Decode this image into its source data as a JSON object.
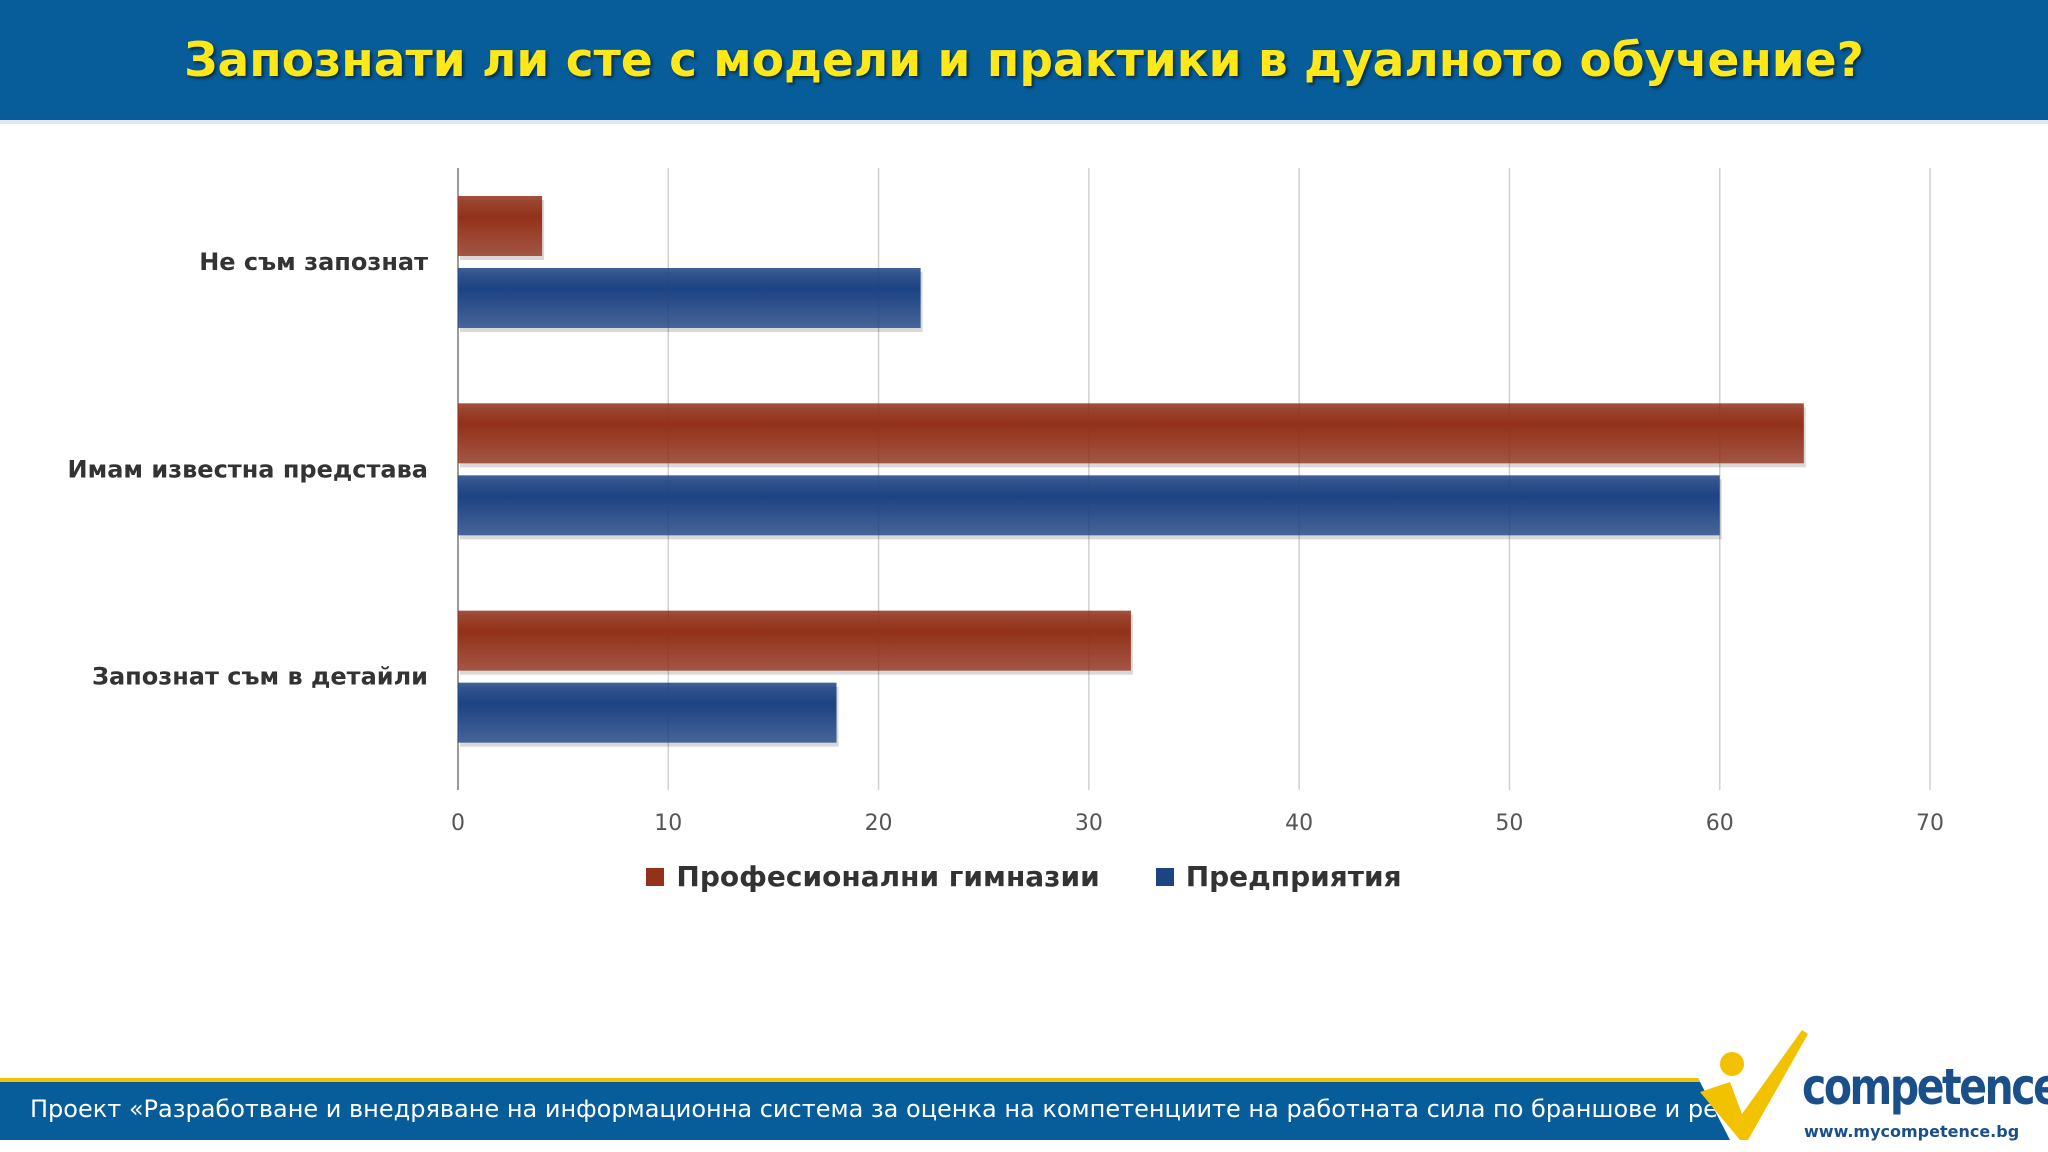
{
  "header": {
    "title": "Запознати ли сте с модели и практики в дуалното обучение?"
  },
  "chart_data": {
    "type": "bar",
    "orientation": "horizontal",
    "title": "Запознати ли сте с модели и практики в дуалното обучение?",
    "categories": [
      "Не съм запознат",
      "Имам известна представа",
      "Запознат съм в детайли"
    ],
    "series": [
      {
        "name": "Професионални гимназии",
        "color": "#93311a",
        "values": [
          4,
          64,
          32
        ]
      },
      {
        "name": "Предприятия",
        "color": "#1d4384",
        "values": [
          22,
          60,
          18
        ]
      }
    ],
    "x_ticks": [
      "0",
      "10",
      "20",
      "30",
      "40",
      "50",
      "60",
      "70"
    ],
    "xlim": [
      0,
      70
    ],
    "grid": true,
    "legend_position": "bottom"
  },
  "footer": {
    "text": "Проект «Разработване и внедряване на информационна система за оценка на компетенциите на работната сила по браншове и региони»"
  },
  "logo": {
    "word": "competence",
    "url": "www.mycompetence.bg"
  },
  "colors": {
    "header_bg": "#075d99",
    "title": "#ffe81a",
    "accent": "#f2c200"
  }
}
